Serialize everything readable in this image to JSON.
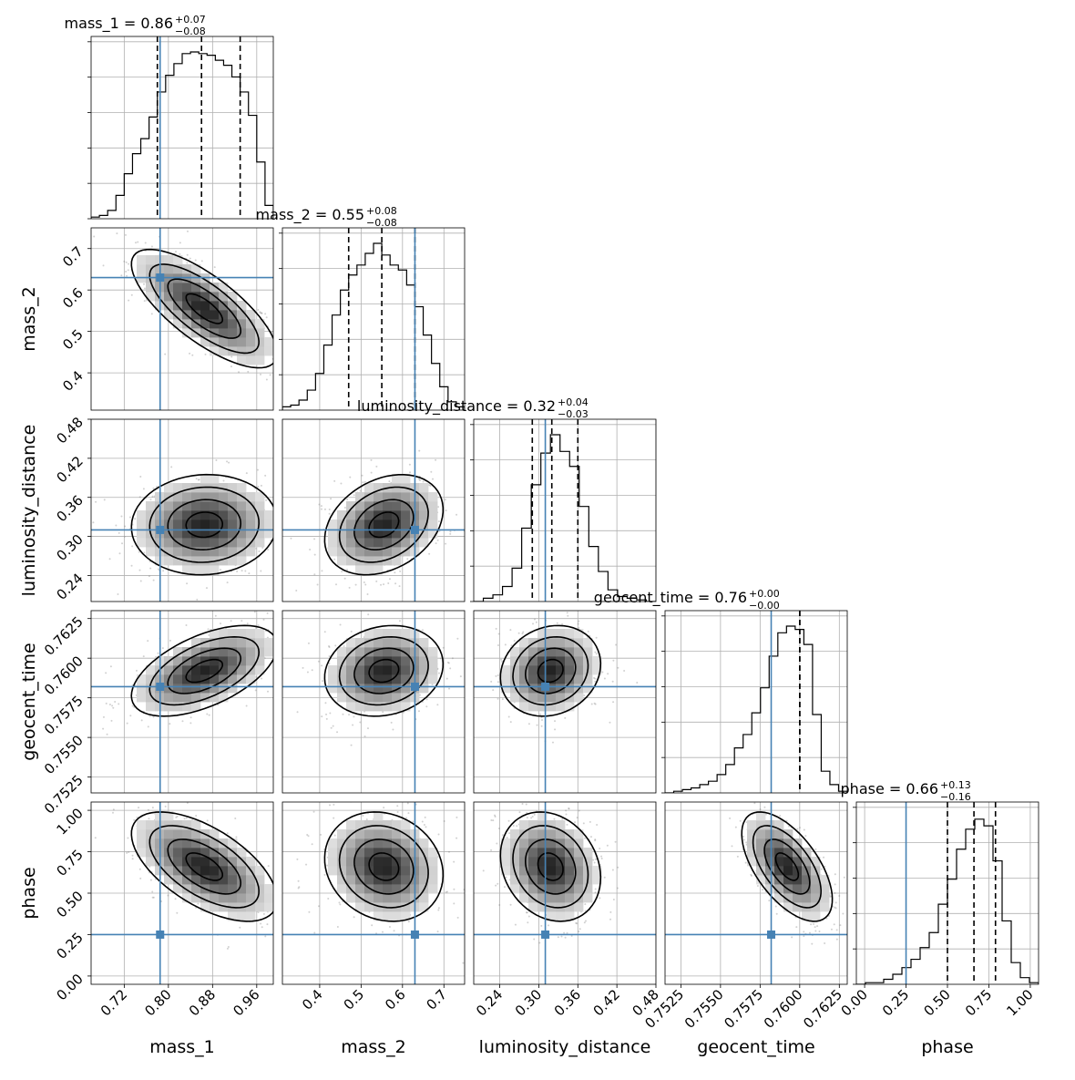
{
  "chart_data": {
    "type": "corner",
    "parameters": [
      {
        "name": "mass_1",
        "axis_label": "mass_1",
        "range": [
          0.66,
          0.99
        ],
        "ticks": [
          0.72,
          0.8,
          0.88,
          0.96
        ],
        "tick_labels": [
          "0.72",
          "0.80",
          "0.88",
          "0.96"
        ],
        "truth": 0.785,
        "median": 0.86,
        "plus": 0.07,
        "minus": 0.08,
        "title_main": "mass_1 = 0.86",
        "title_sup": "+0.07",
        "title_sub": "−0.08",
        "hist": [
          0.01,
          0.02,
          0.05,
          0.14,
          0.27,
          0.39,
          0.48,
          0.61,
          0.76,
          0.86,
          0.93,
          0.99,
          1.0,
          0.99,
          0.98,
          0.95,
          0.92,
          0.85,
          0.76,
          0.62,
          0.34,
          0.08
        ]
      },
      {
        "name": "mass_2",
        "axis_label": "mass_2",
        "range": [
          0.31,
          0.75
        ],
        "ticks": [
          0.4,
          0.5,
          0.6,
          0.7
        ],
        "tick_labels": [
          "0.4",
          "0.5",
          "0.6",
          "0.7"
        ],
        "truth": 0.63,
        "median": 0.55,
        "plus": 0.08,
        "minus": 0.08,
        "title_main": "mass_2 = 0.55",
        "title_sup": "+0.08",
        "title_sub": "−0.08",
        "hist": [
          0.02,
          0.03,
          0.06,
          0.12,
          0.22,
          0.39,
          0.57,
          0.72,
          0.81,
          0.87,
          0.94,
          1.0,
          0.93,
          0.87,
          0.84,
          0.75,
          0.62,
          0.45,
          0.28,
          0.14,
          0.05,
          0.02
        ]
      },
      {
        "name": "luminosity_distance",
        "axis_label": "luminosity_distance",
        "range": [
          0.2,
          0.48
        ],
        "ticks": [
          0.24,
          0.3,
          0.36,
          0.42,
          0.48
        ],
        "tick_labels": [
          "0.24",
          "0.30",
          "0.36",
          "0.42",
          "0.48"
        ],
        "truth": 0.31,
        "median": 0.32,
        "plus": 0.04,
        "minus": 0.03,
        "title_main": "luminosity_distance = 0.32",
        "title_sup": "+0.04",
        "title_sub": "−0.03",
        "hist": [
          0.0,
          0.02,
          0.04,
          0.09,
          0.2,
          0.44,
          0.7,
          0.89,
          1.0,
          0.9,
          0.81,
          0.57,
          0.33,
          0.18,
          0.07,
          0.03,
          0.02,
          0.01,
          0.0
        ]
      },
      {
        "name": "geocent_time",
        "axis_label": "geocent_time",
        "range": [
          0.7515,
          0.763
        ],
        "ticks": [
          0.7525,
          0.755,
          0.7575,
          0.76,
          0.7625
        ],
        "tick_labels": [
          "0.7525",
          "0.7550",
          "0.7575",
          "0.7600",
          "0.7625"
        ],
        "truth": 0.7582,
        "median": 0.76,
        "plus": 0.0,
        "minus": 0.0,
        "title_main": "geocent_time = 0.76",
        "title_sup": "+0.00",
        "title_sub": "−0.00",
        "hist": [
          0.0,
          0.01,
          0.02,
          0.03,
          0.05,
          0.07,
          0.11,
          0.17,
          0.27,
          0.35,
          0.48,
          0.63,
          0.82,
          0.96,
          1.0,
          0.98,
          0.89,
          0.47,
          0.13,
          0.05,
          0.01
        ]
      },
      {
        "name": "phase",
        "axis_label": "phase",
        "range": [
          -0.05,
          1.05
        ],
        "ticks": [
          0.0,
          0.25,
          0.5,
          0.75,
          1.0
        ],
        "tick_labels": [
          "0.00",
          "0.25",
          "0.50",
          "0.75",
          "1.00"
        ],
        "truth": 0.25,
        "median": 0.66,
        "plus": 0.13,
        "minus": 0.16,
        "title_main": "phase = 0.66",
        "title_sup": "+0.13",
        "title_sub": "−0.16",
        "hist": [
          0.0,
          0.01,
          0.01,
          0.03,
          0.06,
          0.1,
          0.15,
          0.22,
          0.31,
          0.48,
          0.63,
          0.81,
          0.93,
          0.99,
          0.95,
          0.74,
          0.38,
          0.13,
          0.04,
          0.01
        ]
      }
    ],
    "pair_panels": [
      {
        "row": 1,
        "col": 0,
        "mean": [
          0.865,
          0.555
        ],
        "sigma": [
          0.06,
          0.065
        ],
        "rho": -0.75
      },
      {
        "row": 2,
        "col": 0,
        "mean": [
          0.865,
          0.318
        ],
        "sigma": [
          0.06,
          0.035
        ],
        "rho": 0.05
      },
      {
        "row": 2,
        "col": 1,
        "mean": [
          0.555,
          0.318
        ],
        "sigma": [
          0.065,
          0.035
        ],
        "rho": 0.3
      },
      {
        "row": 3,
        "col": 0,
        "mean": [
          0.865,
          0.7592
        ],
        "sigma": [
          0.06,
          0.0013
        ],
        "rho": 0.55
      },
      {
        "row": 3,
        "col": 1,
        "mean": [
          0.555,
          0.7592
        ],
        "sigma": [
          0.065,
          0.0013
        ],
        "rho": 0.15
      },
      {
        "row": 3,
        "col": 2,
        "mean": [
          0.318,
          0.7592
        ],
        "sigma": [
          0.035,
          0.0013
        ],
        "rho": 0.15
      },
      {
        "row": 4,
        "col": 0,
        "mean": [
          0.865,
          0.66
        ],
        "sigma": [
          0.06,
          0.15
        ],
        "rho": -0.6
      },
      {
        "row": 4,
        "col": 1,
        "mean": [
          0.555,
          0.66
        ],
        "sigma": [
          0.065,
          0.15
        ],
        "rho": -0.15
      },
      {
        "row": 4,
        "col": 2,
        "mean": [
          0.318,
          0.66
        ],
        "sigma": [
          0.035,
          0.15
        ],
        "rho": -0.2
      },
      {
        "row": 4,
        "col": 3,
        "mean": [
          0.7592,
          0.66
        ],
        "sigma": [
          0.0013,
          0.15
        ],
        "rho": -0.6
      }
    ],
    "contour_levels_sigma": [
      0.5,
      1.0,
      1.5,
      2.0
    ],
    "grid": true,
    "colors": {
      "truth": "#4682b4",
      "density": "#000000",
      "grid": "#b0b0b0"
    }
  }
}
